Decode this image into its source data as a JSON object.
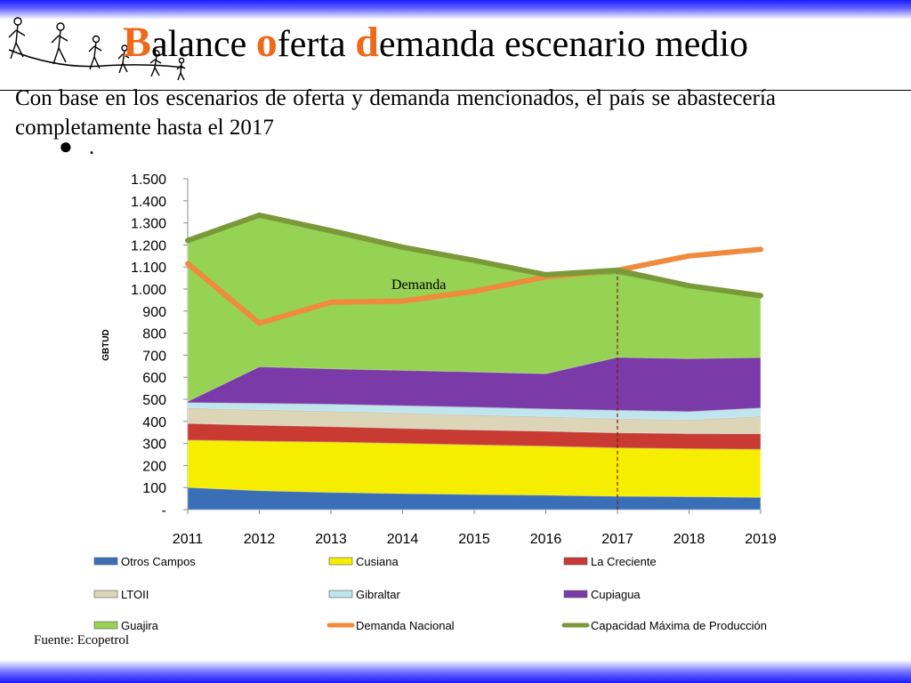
{
  "slide": {
    "title_parts": [
      {
        "cap": "B",
        "rest": "alance "
      },
      {
        "cap": "o",
        "rest": "ferta "
      },
      {
        "cap": "d",
        "rest": "emanda escenario medio"
      }
    ],
    "body": "Con base en los escenarios de oferta y demanda mencionados, el país se abastecería completamente hasta el 2017",
    "bullet_glyph": "●",
    "bullet_text": ".",
    "source": "Fuente: Ecopetrol"
  },
  "chart_data": {
    "type": "area",
    "stacked": true,
    "ylabel": "GBTUD",
    "ylim": [
      0,
      1500
    ],
    "yticks": [
      {
        "v": 0,
        "label": "-"
      },
      {
        "v": 100,
        "label": "100"
      },
      {
        "v": 200,
        "label": "200"
      },
      {
        "v": 300,
        "label": "300"
      },
      {
        "v": 400,
        "label": "400"
      },
      {
        "v": 500,
        "label": "500"
      },
      {
        "v": 600,
        "label": "600"
      },
      {
        "v": 700,
        "label": "700"
      },
      {
        "v": 800,
        "label": "800"
      },
      {
        "v": 900,
        "label": "900"
      },
      {
        "v": 1000,
        "label": "1.000"
      },
      {
        "v": 1100,
        "label": "1.100"
      },
      {
        "v": 1200,
        "label": "1.200"
      },
      {
        "v": 1300,
        "label": "1.300"
      },
      {
        "v": 1400,
        "label": "1.400"
      },
      {
        "v": 1500,
        "label": "1.500"
      }
    ],
    "categories": [
      "2011",
      "2012",
      "2013",
      "2014",
      "2015",
      "2016",
      "2017",
      "2018",
      "2019"
    ],
    "series": [
      {
        "name": "Otros Campos",
        "color": "#3a6fb8",
        "values": [
          100,
          85,
          78,
          72,
          68,
          65,
          60,
          58,
          55
        ]
      },
      {
        "name": "Cusiana",
        "color": "#f5ee00",
        "values": [
          215,
          225,
          228,
          228,
          225,
          222,
          220,
          218,
          218
        ]
      },
      {
        "name": "La Creciente",
        "color": "#c83a32",
        "values": [
          75,
          72,
          70,
          68,
          68,
          68,
          68,
          68,
          70
        ]
      },
      {
        "name": "LTOII",
        "color": "#ddd5b8",
        "values": [
          70,
          70,
          70,
          70,
          68,
          66,
          64,
          62,
          80
        ]
      },
      {
        "name": "Gibraltar",
        "color": "#bfe6ee",
        "values": [
          25,
          30,
          32,
          33,
          35,
          35,
          38,
          38,
          38
        ]
      },
      {
        "name": "Cupiagua",
        "color": "#7a3aa8",
        "values": [
          5,
          165,
          160,
          160,
          160,
          160,
          240,
          240,
          228
        ]
      },
      {
        "name": "Guajira",
        "color": "#96d254",
        "values": [
          720,
          680,
          615,
          550,
          500,
          440,
          380,
          325,
          270
        ]
      }
    ],
    "lines": [
      {
        "name": "Demanda Nacional",
        "color": "#f08a3c",
        "values": [
          1115,
          845,
          940,
          945,
          990,
          1055,
          1085,
          1150,
          1180
        ]
      },
      {
        "name": "Capacidad Máxima de Producción",
        "color": "#7a9a3a",
        "values": [
          1220,
          1335,
          1265,
          1190,
          1130,
          1065,
          1085,
          1015,
          970
        ]
      }
    ],
    "annotation": {
      "text": "Demanda",
      "x": "2015",
      "y": 1020
    },
    "marker_year": "2017",
    "grid": false,
    "legend_position": "bottom"
  }
}
